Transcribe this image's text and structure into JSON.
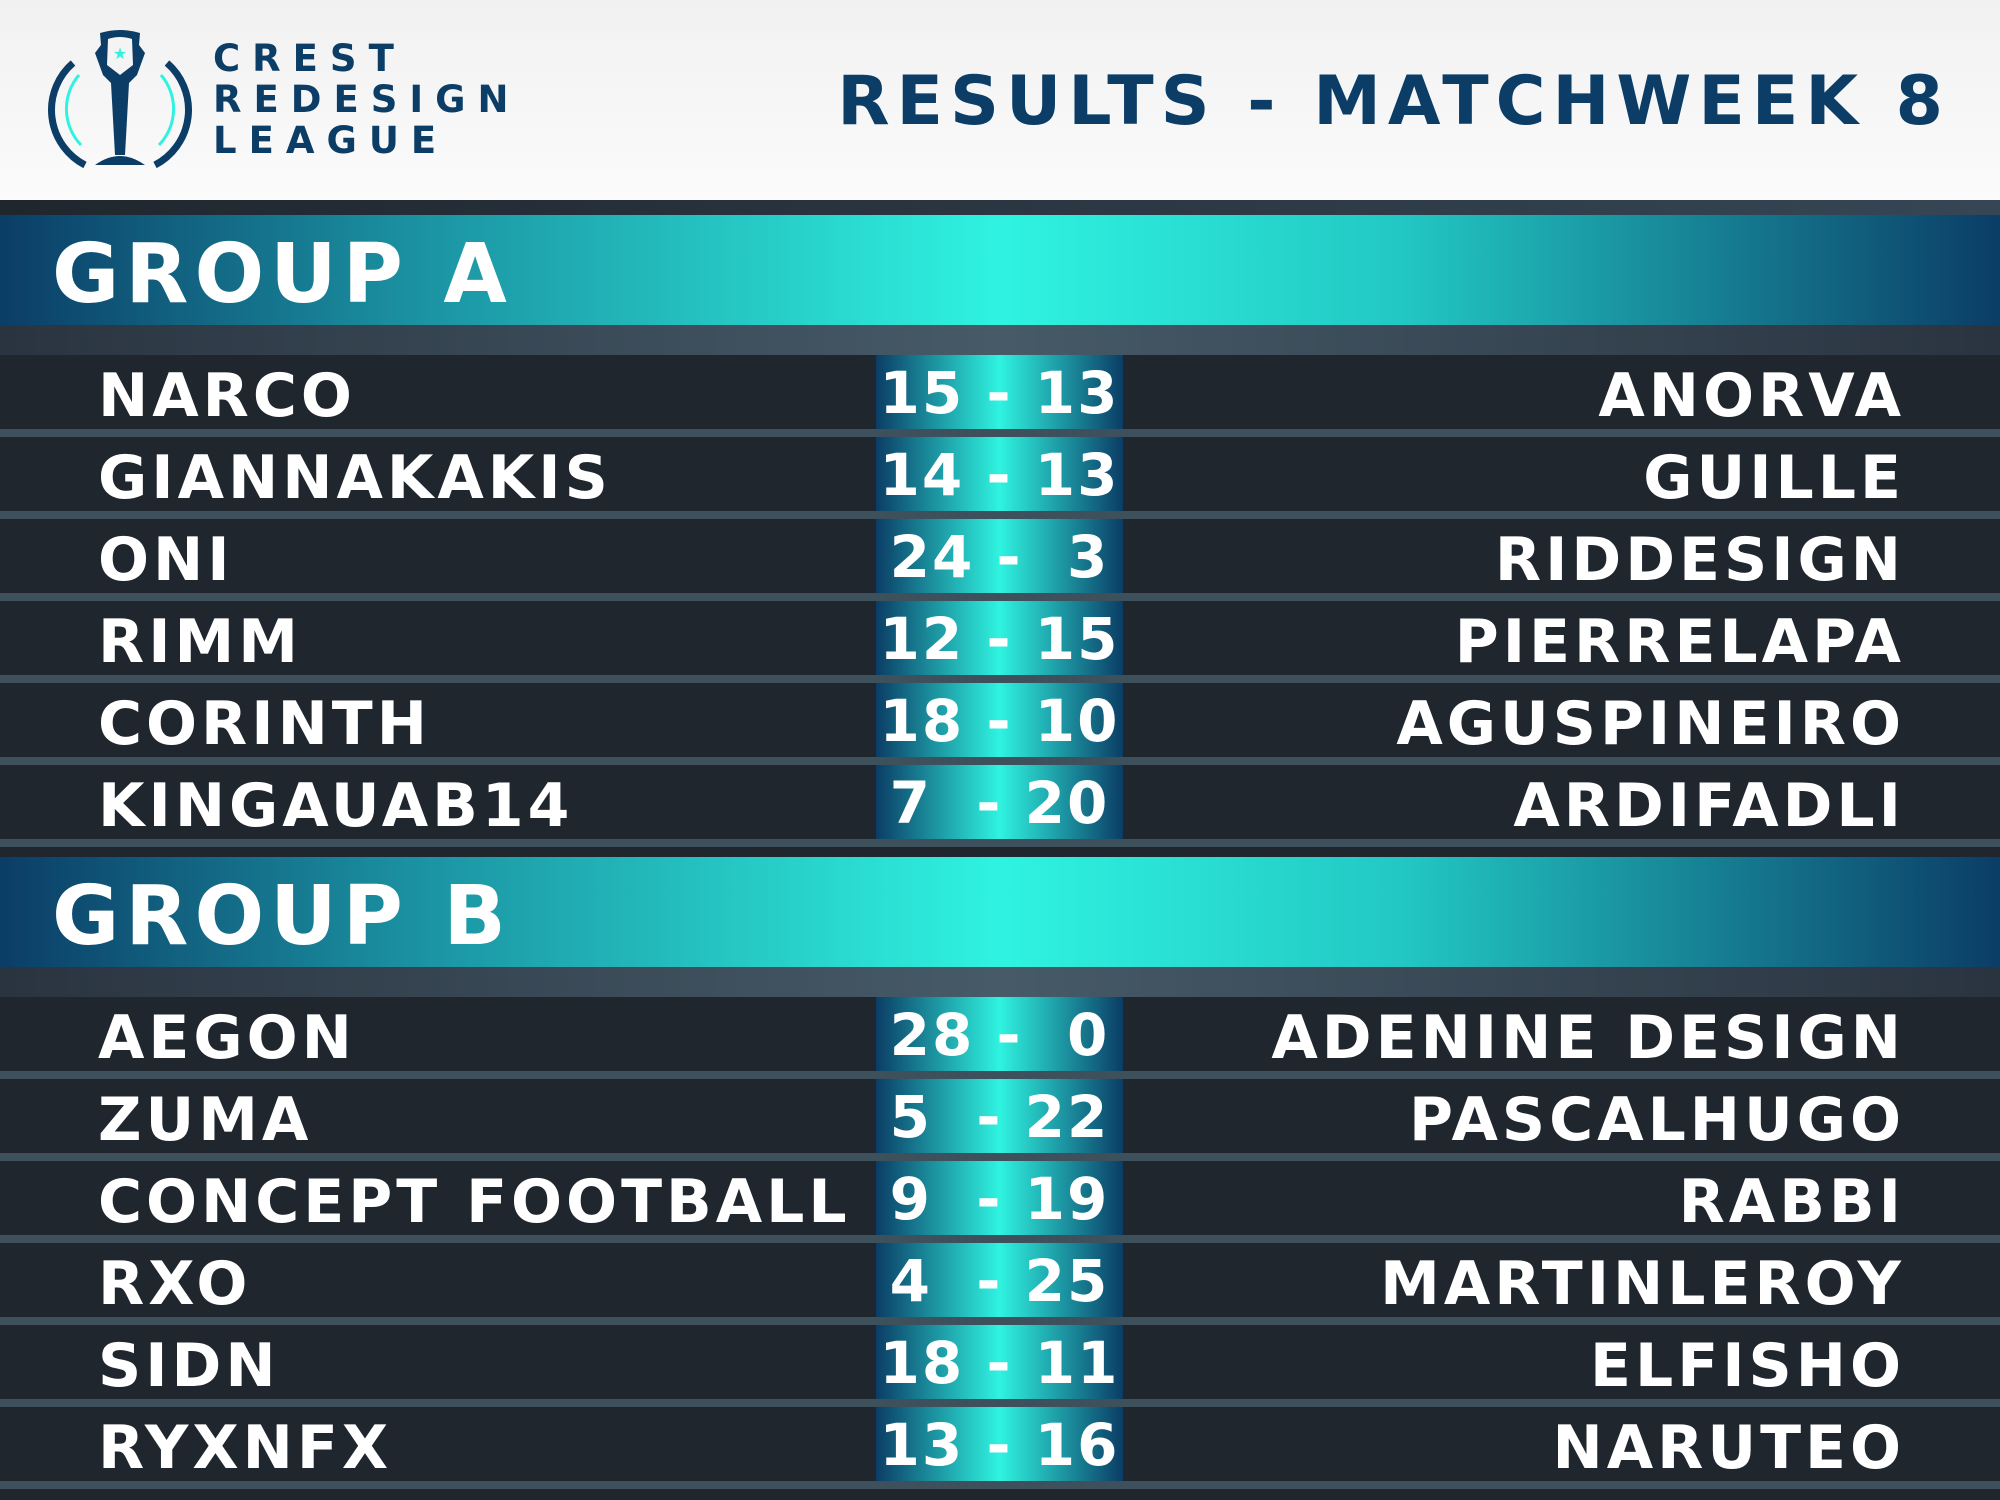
{
  "header": {
    "brand_lines": [
      "CREST",
      "REDESIGN",
      "LEAGUE"
    ],
    "title": "RESULTS - MATCHWEEK 8"
  },
  "colors": {
    "navy": "#0b3d66",
    "cyan": "#2ff3e0",
    "background": "#1f262e"
  },
  "groups": [
    {
      "name": "GROUP A",
      "matches": [
        {
          "home": "NARCO",
          "score": "15 - 13",
          "away": "ANORVA"
        },
        {
          "home": "GIANNAKAKIS",
          "score": "14 - 13",
          "away": "GUILLE"
        },
        {
          "home": "ONI",
          "score": "24 -  3",
          "away": "RIDDESIGN"
        },
        {
          "home": "RIMM",
          "score": "12 - 15",
          "away": "PIERRELAPA"
        },
        {
          "home": "CORINTH",
          "score": "18 - 10",
          "away": "AGUSPINEIRO"
        },
        {
          "home": "KINGAUAB14",
          "score": "7  - 20",
          "away": "ARDIFADLI"
        }
      ]
    },
    {
      "name": "GROUP B",
      "matches": [
        {
          "home": "AEGON",
          "score": "28 -  0",
          "away": "ADENINE DESIGN"
        },
        {
          "home": "ZUMA",
          "score": "5  - 22",
          "away": "PASCALHUGO"
        },
        {
          "home": "CONCEPT FOOTBALL",
          "score": "9  - 19",
          "away": "RABBI"
        },
        {
          "home": "RXO",
          "score": "4  - 25",
          "away": "MARTINLEROY"
        },
        {
          "home": "SIDN",
          "score": "18 - 11",
          "away": "ELFISHO"
        },
        {
          "home": "RYXNFX",
          "score": "13 - 16",
          "away": "NARUTEO"
        }
      ]
    }
  ]
}
